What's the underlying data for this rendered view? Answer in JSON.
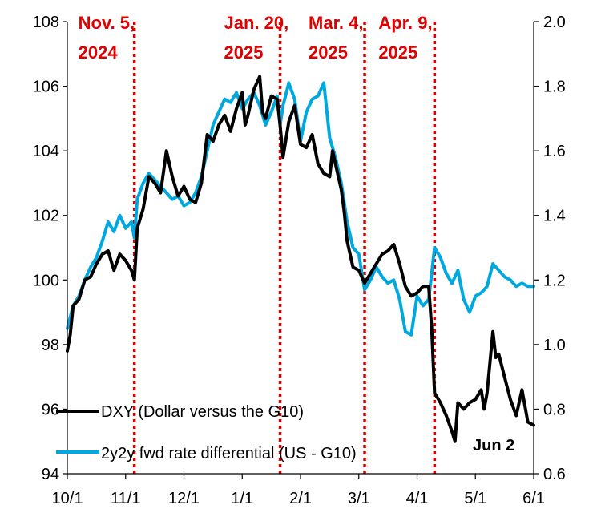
{
  "chart_data": {
    "type": "line",
    "title": "",
    "xlabel": "",
    "ylabel": "",
    "y2label": "",
    "x_ticks": [
      "10/1",
      "11/1",
      "12/1",
      "1/1",
      "2/1",
      "3/1",
      "4/1",
      "5/1",
      "6/1"
    ],
    "x_range_months": [
      0,
      8
    ],
    "ylim": [
      94,
      108
    ],
    "y_ticks": [
      "94",
      "96",
      "98",
      "100",
      "102",
      "104",
      "106",
      "108"
    ],
    "y2lim": [
      0.6,
      2.0
    ],
    "y2_ticks": [
      "0.6",
      "0.8",
      "1.0",
      "1.2",
      "1.4",
      "1.6",
      "1.8",
      "2.0"
    ],
    "grid": false,
    "legend_position": "bottom-left",
    "colors": {
      "dxy": "#000000",
      "rate": "#00a8e0",
      "event": "#e00000"
    },
    "events": [
      {
        "line1": "Nov. 5,",
        "line2": "2024",
        "x": 1.15
      },
      {
        "line1": "Jan. 20,",
        "line2": "2025",
        "x": 3.65
      },
      {
        "line1": "Mar. 4,",
        "line2": "2025",
        "x": 5.1
      },
      {
        "line1": "Apr. 9,",
        "line2": "2025",
        "x": 6.3
      }
    ],
    "annotation": "Jun 2",
    "series": [
      {
        "name": "DXY (Dollar versus the G10)",
        "axis": "left",
        "points": [
          [
            0.0,
            97.8
          ],
          [
            0.05,
            98.3
          ],
          [
            0.1,
            99.2
          ],
          [
            0.2,
            99.4
          ],
          [
            0.3,
            100.0
          ],
          [
            0.4,
            100.1
          ],
          [
            0.5,
            100.5
          ],
          [
            0.6,
            100.8
          ],
          [
            0.7,
            100.9
          ],
          [
            0.8,
            100.3
          ],
          [
            0.9,
            100.8
          ],
          [
            1.0,
            100.6
          ],
          [
            1.1,
            100.3
          ],
          [
            1.15,
            100.0
          ],
          [
            1.2,
            101.6
          ],
          [
            1.3,
            102.2
          ],
          [
            1.4,
            103.2
          ],
          [
            1.5,
            103.0
          ],
          [
            1.6,
            102.7
          ],
          [
            1.7,
            104.0
          ],
          [
            1.8,
            103.2
          ],
          [
            1.9,
            102.6
          ],
          [
            2.0,
            102.9
          ],
          [
            2.1,
            102.5
          ],
          [
            2.2,
            102.4
          ],
          [
            2.3,
            103.0
          ],
          [
            2.4,
            104.5
          ],
          [
            2.5,
            104.3
          ],
          [
            2.6,
            104.8
          ],
          [
            2.7,
            105.1
          ],
          [
            2.8,
            104.6
          ],
          [
            2.9,
            105.3
          ],
          [
            3.0,
            105.8
          ],
          [
            3.05,
            104.8
          ],
          [
            3.1,
            105.1
          ],
          [
            3.2,
            105.9
          ],
          [
            3.3,
            106.3
          ],
          [
            3.35,
            105.2
          ],
          [
            3.4,
            105.0
          ],
          [
            3.5,
            105.7
          ],
          [
            3.6,
            105.6
          ],
          [
            3.65,
            104.8
          ],
          [
            3.7,
            103.8
          ],
          [
            3.8,
            104.9
          ],
          [
            3.9,
            105.4
          ],
          [
            4.0,
            104.2
          ],
          [
            4.1,
            104.1
          ],
          [
            4.2,
            104.5
          ],
          [
            4.3,
            103.6
          ],
          [
            4.4,
            103.3
          ],
          [
            4.5,
            103.2
          ],
          [
            4.55,
            104.0
          ],
          [
            4.6,
            103.6
          ],
          [
            4.7,
            102.8
          ],
          [
            4.75,
            102.1
          ],
          [
            4.8,
            101.2
          ],
          [
            4.9,
            100.4
          ],
          [
            5.0,
            100.3
          ],
          [
            5.1,
            99.9
          ],
          [
            5.2,
            100.2
          ],
          [
            5.3,
            100.5
          ],
          [
            5.4,
            100.8
          ],
          [
            5.5,
            100.9
          ],
          [
            5.6,
            101.1
          ],
          [
            5.7,
            100.5
          ],
          [
            5.8,
            99.8
          ],
          [
            5.9,
            99.5
          ],
          [
            6.0,
            99.6
          ],
          [
            6.1,
            99.8
          ],
          [
            6.2,
            99.8
          ],
          [
            6.25,
            98.5
          ],
          [
            6.3,
            96.5
          ],
          [
            6.4,
            96.2
          ],
          [
            6.5,
            95.8
          ],
          [
            6.6,
            95.3
          ],
          [
            6.65,
            95.0
          ],
          [
            6.7,
            96.2
          ],
          [
            6.8,
            96.0
          ],
          [
            6.9,
            96.2
          ],
          [
            7.0,
            96.3
          ],
          [
            7.1,
            96.6
          ],
          [
            7.15,
            96.0
          ],
          [
            7.2,
            96.5
          ],
          [
            7.3,
            98.4
          ],
          [
            7.35,
            97.6
          ],
          [
            7.4,
            97.7
          ],
          [
            7.5,
            97.0
          ],
          [
            7.6,
            96.3
          ],
          [
            7.7,
            95.8
          ],
          [
            7.8,
            96.6
          ],
          [
            7.9,
            95.6
          ],
          [
            8.0,
            95.5
          ]
        ]
      },
      {
        "name": "2y2y fwd rate differential (US - G10)",
        "axis": "right",
        "points": [
          [
            0.0,
            1.05
          ],
          [
            0.1,
            1.12
          ],
          [
            0.2,
            1.15
          ],
          [
            0.3,
            1.2
          ],
          [
            0.4,
            1.24
          ],
          [
            0.5,
            1.27
          ],
          [
            0.6,
            1.32
          ],
          [
            0.7,
            1.38
          ],
          [
            0.8,
            1.35
          ],
          [
            0.9,
            1.4
          ],
          [
            1.0,
            1.36
          ],
          [
            1.1,
            1.38
          ],
          [
            1.15,
            1.33
          ],
          [
            1.2,
            1.45
          ],
          [
            1.3,
            1.5
          ],
          [
            1.4,
            1.53
          ],
          [
            1.5,
            1.51
          ],
          [
            1.6,
            1.49
          ],
          [
            1.7,
            1.47
          ],
          [
            1.8,
            1.45
          ],
          [
            1.9,
            1.46
          ],
          [
            2.0,
            1.43
          ],
          [
            2.1,
            1.44
          ],
          [
            2.2,
            1.47
          ],
          [
            2.3,
            1.52
          ],
          [
            2.4,
            1.6
          ],
          [
            2.5,
            1.68
          ],
          [
            2.6,
            1.72
          ],
          [
            2.7,
            1.76
          ],
          [
            2.8,
            1.75
          ],
          [
            2.9,
            1.78
          ],
          [
            3.0,
            1.73
          ],
          [
            3.1,
            1.76
          ],
          [
            3.2,
            1.78
          ],
          [
            3.3,
            1.74
          ],
          [
            3.4,
            1.68
          ],
          [
            3.5,
            1.72
          ],
          [
            3.6,
            1.77
          ],
          [
            3.65,
            1.68
          ],
          [
            3.7,
            1.74
          ],
          [
            3.8,
            1.81
          ],
          [
            3.9,
            1.76
          ],
          [
            4.0,
            1.63
          ],
          [
            4.1,
            1.72
          ],
          [
            4.2,
            1.76
          ],
          [
            4.3,
            1.77
          ],
          [
            4.4,
            1.81
          ],
          [
            4.5,
            1.64
          ],
          [
            4.6,
            1.58
          ],
          [
            4.7,
            1.5
          ],
          [
            4.8,
            1.38
          ],
          [
            4.9,
            1.3
          ],
          [
            5.0,
            1.28
          ],
          [
            5.1,
            1.17
          ],
          [
            5.2,
            1.2
          ],
          [
            5.3,
            1.24
          ],
          [
            5.4,
            1.21
          ],
          [
            5.5,
            1.19
          ],
          [
            5.6,
            1.2
          ],
          [
            5.7,
            1.14
          ],
          [
            5.8,
            1.04
          ],
          [
            5.9,
            1.03
          ],
          [
            6.0,
            1.15
          ],
          [
            6.1,
            1.12
          ],
          [
            6.2,
            1.14
          ],
          [
            6.3,
            1.3
          ],
          [
            6.4,
            1.27
          ],
          [
            6.5,
            1.22
          ],
          [
            6.6,
            1.19
          ],
          [
            6.7,
            1.23
          ],
          [
            6.8,
            1.14
          ],
          [
            6.9,
            1.1
          ],
          [
            7.0,
            1.15
          ],
          [
            7.1,
            1.16
          ],
          [
            7.2,
            1.18
          ],
          [
            7.3,
            1.25
          ],
          [
            7.4,
            1.23
          ],
          [
            7.5,
            1.21
          ],
          [
            7.6,
            1.2
          ],
          [
            7.7,
            1.18
          ],
          [
            7.8,
            1.19
          ],
          [
            7.9,
            1.18
          ],
          [
            8.0,
            1.18
          ]
        ]
      }
    ]
  }
}
